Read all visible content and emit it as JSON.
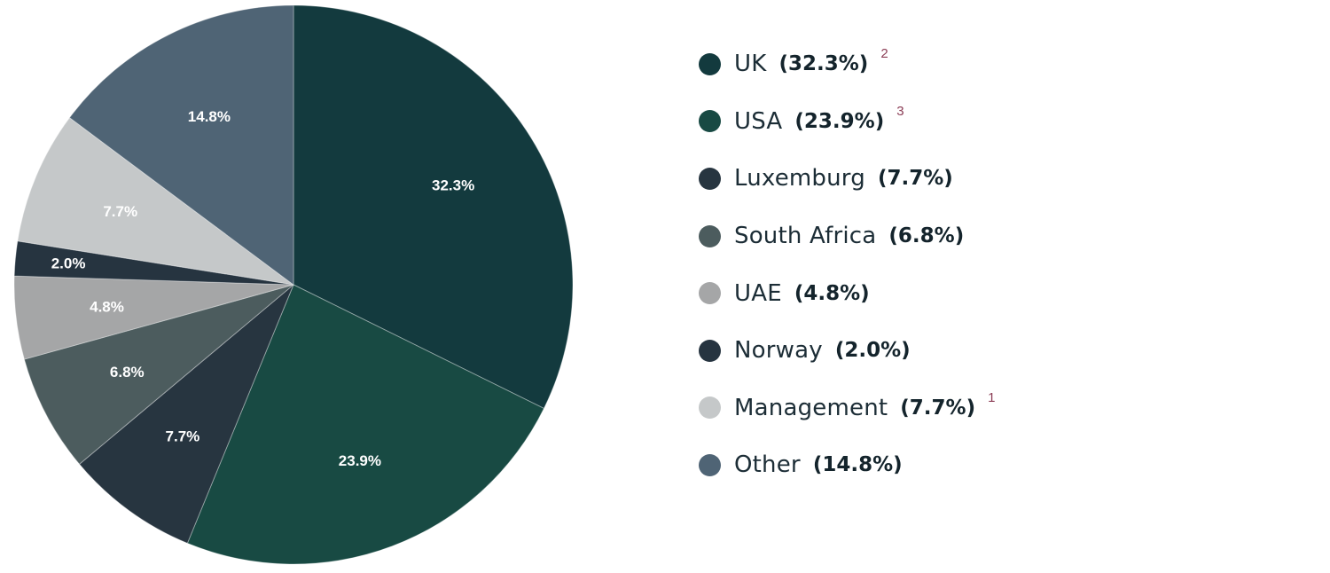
{
  "chart_data": {
    "type": "pie",
    "slices": [
      {
        "name": "UK",
        "value": 32.3,
        "label": "32.3%",
        "legend_pct": "(32.3%)",
        "note": "2",
        "color": "#133a3e"
      },
      {
        "name": "USA",
        "value": 23.9,
        "label": "23.9%",
        "legend_pct": "(23.9%)",
        "note": "3",
        "color": "#184a43"
      },
      {
        "name": "Luxemburg",
        "value": 7.7,
        "label": "7.7%",
        "legend_pct": "(7.7%)",
        "note": "",
        "color": "#273540"
      },
      {
        "name": "South Africa",
        "value": 6.8,
        "label": "6.8%",
        "legend_pct": "(6.8%)",
        "note": "",
        "color": "#4c5c5e"
      },
      {
        "name": "UAE",
        "value": 4.8,
        "label": "4.8%",
        "legend_pct": "(4.8%)",
        "note": "",
        "color": "#a5a6a7"
      },
      {
        "name": "Norway",
        "value": 2.0,
        "label": "2.0%",
        "legend_pct": "(2.0%)",
        "note": "",
        "color": "#263440"
      },
      {
        "name": "Management",
        "value": 7.7,
        "label": "7.7%",
        "legend_pct": "(7.7%)",
        "note": "1",
        "color": "#c5c8c9"
      },
      {
        "name": "Other",
        "value": 14.8,
        "label": "14.8%",
        "legend_pct": "(14.8%)",
        "note": "",
        "color": "#4f6475"
      }
    ],
    "start_angle_deg": 0,
    "direction": "clockwise",
    "legend_position": "right"
  }
}
